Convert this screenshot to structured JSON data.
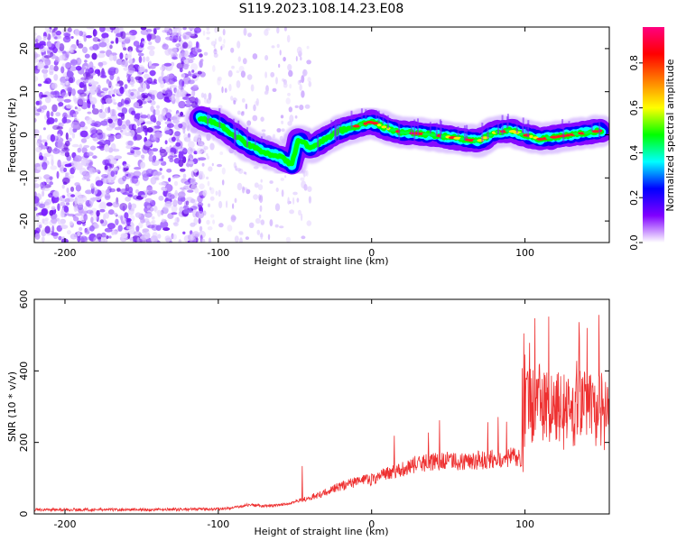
{
  "figure_title": "S119.2023.108.14.23.E08",
  "chart_data": [
    {
      "type": "heatmap",
      "xlabel": "Height of straight line (km)",
      "ylabel": "Frequency (Hz)",
      "xlim": [
        -220,
        155
      ],
      "ylim": [
        -25,
        25
      ],
      "xticks": [
        -200,
        -100,
        0,
        100
      ],
      "yticks": [
        -20,
        -10,
        0,
        10,
        20
      ],
      "colorbar": {
        "label": "Normalized spectral amplitude",
        "range": [
          0,
          0.96
        ],
        "ticks": [
          0.0,
          0.2,
          0.4,
          0.6,
          0.8
        ],
        "colors": [
          "#ffffff",
          "#8000ff",
          "#0000ff",
          "#00ffff",
          "#00ff00",
          "#ffff00",
          "#ff8000",
          "#ff0000",
          "#ff0080"
        ]
      },
      "ridge": {
        "x": [
          -112,
          -105,
          -100,
          -90,
          -80,
          -70,
          -60,
          -52,
          -48,
          -40,
          -30,
          -20,
          -10,
          0,
          10,
          20,
          30,
          40,
          50,
          60,
          70,
          80,
          90,
          100,
          110,
          120,
          130,
          140,
          150
        ],
        "y": [
          4,
          3,
          2.5,
          0,
          -2.5,
          -4,
          -5,
          -7,
          -1,
          -3,
          -1,
          1,
          2,
          3,
          1.5,
          0.5,
          0.3,
          0,
          -0.5,
          -1,
          -1.5,
          0.5,
          1,
          0,
          -1,
          -0.5,
          0,
          0.5,
          1
        ]
      }
    },
    {
      "type": "line",
      "xlabel": "Height of straight line (km)",
      "ylabel": "SNR (10 * v/v)",
      "xlim": [
        -220,
        155
      ],
      "ylim": [
        0,
        600
      ],
      "xticks": [
        -200,
        -100,
        0,
        100
      ],
      "yticks": [
        0,
        200,
        400,
        600
      ],
      "color": "#ee3030",
      "series": [
        {
          "x": [
            -220,
            -200,
            -180,
            -160,
            -140,
            -120,
            -100,
            -90,
            -80,
            -70,
            -60,
            -50,
            -40,
            -30,
            -20,
            -10,
            0,
            10,
            20,
            30,
            40,
            50,
            60,
            70,
            80,
            90,
            98,
            100,
            110,
            120,
            130,
            140,
            150,
            155
          ],
          "values": [
            12,
            12,
            12,
            12,
            12,
            13,
            14,
            17,
            26,
            22,
            24,
            34,
            45,
            60,
            78,
            90,
            97,
            112,
            128,
            140,
            146,
            148,
            148,
            150,
            154,
            158,
            158,
            300,
            320,
            290,
            285,
            300,
            290,
            280
          ]
        }
      ]
    }
  ]
}
